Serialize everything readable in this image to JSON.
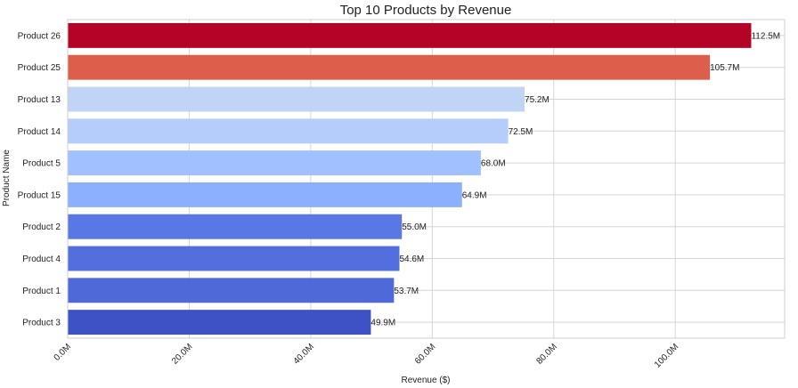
{
  "chart_data": {
    "type": "bar",
    "orientation": "horizontal",
    "title": "Top 10 Products by Revenue",
    "xlabel": "Revenue ($)",
    "ylabel": "Product Name",
    "xlim": [
      0,
      118
    ],
    "x_ticks": [
      0,
      20,
      40,
      60,
      80,
      100
    ],
    "x_tick_labels": [
      "0.0M",
      "20.0M",
      "40.0M",
      "60.0M",
      "80.0M",
      "100.0M"
    ],
    "grid": true,
    "categories": [
      "Product 26",
      "Product 25",
      "Product 13",
      "Product 14",
      "Product 5",
      "Product 15",
      "Product 2",
      "Product 4",
      "Product 1",
      "Product 3"
    ],
    "values": [
      112.5,
      105.7,
      75.2,
      72.5,
      68.0,
      64.9,
      55.0,
      54.6,
      53.7,
      49.9
    ],
    "data_labels": [
      "112.5M",
      "105.7M",
      "75.2M",
      "72.5M",
      "68.0M",
      "64.9M",
      "55.0M",
      "54.6M",
      "53.7M",
      "49.9M"
    ],
    "colors": [
      "#b40426",
      "#dd5f4b",
      "#c0d4f5",
      "#b5cdfa",
      "#a1c0ff",
      "#8caffe",
      "#5a78e4",
      "#536edd",
      "#4f69d9",
      "#3e51c5"
    ]
  }
}
